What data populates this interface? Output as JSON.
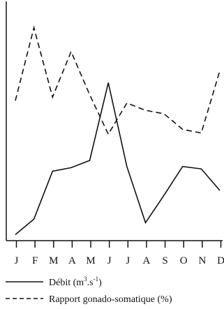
{
  "chart_data": {
    "type": "line",
    "categories": [
      "J",
      "F",
      "M",
      "A",
      "M",
      "J",
      "J",
      "A",
      "S",
      "O",
      "N",
      "D"
    ],
    "series": [
      {
        "name": "Débit (m³.s⁻¹)",
        "legend_text": "Débit (m",
        "legend_sup1": "3",
        "legend_mid": ".s",
        "legend_sup2": "-1",
        "legend_end": ")",
        "line_style": "solid",
        "color": "#111111",
        "values": [
          5,
          18,
          58,
          61,
          67,
          132,
          62,
          15,
          38,
          62,
          60,
          42
        ]
      },
      {
        "name": "Rapport gonado-somatique (%)",
        "legend_text": "Rapport gonado-somatique (%)",
        "line_style": "dashed",
        "color": "#111111",
        "values": [
          117,
          178,
          120,
          158,
          122,
          89,
          115,
          109,
          106,
          93,
          90,
          142
        ]
      }
    ],
    "title": "",
    "xlabel": "",
    "ylabel": "",
    "ylim": [
      0,
      200
    ],
    "grid": false,
    "legend_position": "bottom"
  }
}
